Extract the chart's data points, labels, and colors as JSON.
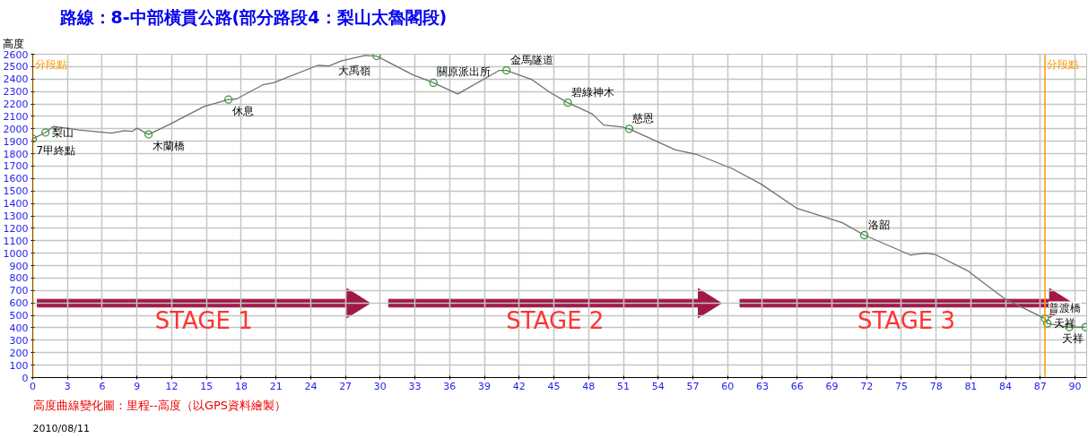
{
  "chart_data": {
    "type": "line",
    "title": "路線：8-中部橫貫公路(部分路段4：梨山太魯閣段)",
    "subtitle": "高度曲線變化圖：里程--高度（以GPS資料繪製）",
    "ylabel": "高度",
    "xlim": [
      0,
      91
    ],
    "ylim": [
      0,
      2600
    ],
    "xticks": [
      0,
      3,
      6,
      9,
      12,
      15,
      18,
      21,
      24,
      27,
      30,
      33,
      36,
      39,
      42,
      45,
      48,
      51,
      54,
      57,
      60,
      63,
      66,
      69,
      72,
      75,
      78,
      81,
      84,
      87,
      90
    ],
    "yticks": [
      0,
      100,
      200,
      300,
      400,
      500,
      600,
      700,
      800,
      900,
      1000,
      1100,
      1200,
      1300,
      1400,
      1500,
      1600,
      1700,
      1800,
      1900,
      2000,
      2100,
      2200,
      2300,
      2400,
      2500,
      2600
    ],
    "grid": true,
    "series": [
      {
        "color": "#707070",
        "marker": "none",
        "x": [
          0,
          1.1,
          1.8,
          4.0,
          6.8,
          7.9,
          8.6,
          9.0,
          10.0,
          11.7,
          14.8,
          16.9,
          17.6,
          19.9,
          20.8,
          24.6,
          25.6,
          26.6,
          28.7,
          29.7,
          32.8,
          34.6,
          36.7,
          40.3,
          40.9,
          43.1,
          44.7,
          46.2,
          48.3,
          49.3,
          50.8,
          51.5,
          55.5,
          57.3,
          60.4,
          62.9,
          66.0,
          69.9,
          71.8,
          75.8,
          77.1,
          77.9,
          80.7,
          82.2,
          83.9,
          86.4,
          87.4,
          87.6,
          89.5,
          90.9
        ],
        "values": [
          1920,
          1970,
          2020,
          1990,
          1965,
          1985,
          1980,
          2005,
          1955,
          2030,
          2180,
          2235,
          2240,
          2355,
          2370,
          2510,
          2505,
          2545,
          2590,
          2585,
          2435,
          2370,
          2280,
          2470,
          2470,
          2395,
          2290,
          2210,
          2120,
          2030,
          2015,
          2000,
          1830,
          1795,
          1680,
          1555,
          1360,
          1245,
          1145,
          985,
          1000,
          990,
          860,
          755,
          635,
          520,
          475,
          435,
          405,
          405
        ]
      },
      {
        "type": "scatter",
        "color": "#339933",
        "marker": "circle",
        "x": [
          0,
          1.1,
          10.0,
          16.9,
          29.7,
          34.6,
          40.9,
          46.2,
          51.5,
          71.8,
          87.4,
          87.6,
          89.5,
          90.9
        ],
        "values": [
          1920,
          1970,
          1955,
          2235,
          2585,
          2370,
          2470,
          2210,
          2000,
          1145,
          475,
          435,
          405,
          405
        ]
      }
    ],
    "ref_lines": [
      {
        "axis": "x",
        "value": 0,
        "label": "分段點",
        "color": "#ff9900"
      },
      {
        "axis": "x",
        "value": 87.4,
        "label": "分段點",
        "color": "#ff9900"
      }
    ],
    "annotations": [
      {
        "text": "7甲終點",
        "x": 0,
        "y": 1920
      },
      {
        "text": "梨山",
        "x": 1.1,
        "y": 1970
      },
      {
        "text": "木蘭橋",
        "x": 10.0,
        "y": 1955
      },
      {
        "text": "休息",
        "x": 16.9,
        "y": 2235
      },
      {
        "text": "大禹嶺",
        "x": 29.7,
        "y": 2585
      },
      {
        "text": "關原派出所",
        "x": 34.6,
        "y": 2370
      },
      {
        "text": "金馬隧道",
        "x": 40.9,
        "y": 2470
      },
      {
        "text": "碧綠神木",
        "x": 46.2,
        "y": 2210
      },
      {
        "text": "慈恩",
        "x": 51.5,
        "y": 2000
      },
      {
        "text": "洛韶",
        "x": 71.8,
        "y": 1145
      },
      {
        "text": "普渡橋",
        "x": 87.4,
        "y": 475
      },
      {
        "text": "天祥",
        "x": 87.6,
        "y": 435
      },
      {
        "text": "天祥",
        "x": 90.9,
        "y": 405
      },
      "STAGE 1",
      "STAGE 2",
      "STAGE 3",
      "2010/08/11"
    ]
  }
}
